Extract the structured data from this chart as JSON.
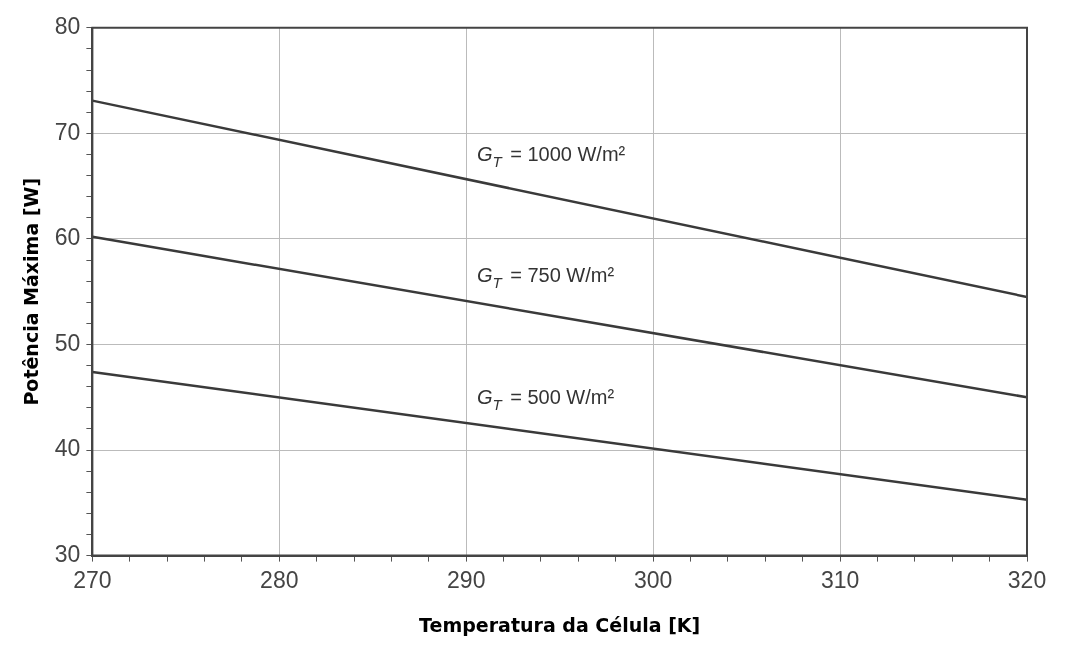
{
  "chart_data": {
    "type": "line",
    "xlabel": "Temperatura da Célula [K]",
    "ylabel": "Potência Máxima [W]",
    "x": [
      270,
      320
    ],
    "series": [
      {
        "name": "G$_{T}$ = 1000 W/m²",
        "color": "#3a3a3a",
        "values": [
          73.1,
          54.5
        ]
      },
      {
        "name": "G$_{T}$ = 750 W/m²",
        "color": "#3a3a3a",
        "values": [
          60.2,
          45
        ]
      },
      {
        "name": "G$_{T}$ = 500 W/m²",
        "color": "#3a3a3a",
        "values": [
          47.4,
          35.3
        ]
      }
    ],
    "xlim": [
      270,
      320
    ],
    "ylim": [
      30,
      80
    ],
    "xticks": [
      270,
      {
        "value": 272,
        "label": null
      },
      {
        "value": 274,
        "label": null
      },
      {
        "value": 276,
        "label": null
      },
      {
        "value": 278,
        "label": null
      },
      280,
      {
        "value": 282,
        "label": null
      },
      {
        "value": 284,
        "label": null
      },
      {
        "value": 286,
        "label": null
      },
      {
        "value": 288,
        "label": null
      },
      290,
      {
        "value": 292,
        "label": null
      },
      {
        "value": 294,
        "label": null
      },
      {
        "value": 296,
        "label": null
      },
      {
        "value": 298,
        "label": null
      },
      300,
      {
        "value": 302,
        "label": null
      },
      {
        "value": 304,
        "label": null
      },
      {
        "value": 306,
        "label": null
      },
      {
        "value": 308,
        "label": null
      },
      310,
      {
        "value": 312,
        "label": null
      },
      {
        "value": 314,
        "label": null
      },
      {
        "value": 316,
        "label": null
      },
      {
        "value": 318,
        "label": null
      },
      320
    ],
    "yticks": [
      30,
      {
        "value": 32,
        "label": null
      },
      {
        "value": 34,
        "label": null
      },
      {
        "value": 36,
        "label": null
      },
      {
        "value": 38,
        "label": null
      },
      40,
      {
        "value": 42,
        "label": null
      },
      {
        "value": 44,
        "label": null
      },
      {
        "value": 46,
        "label": null
      },
      {
        "value": 48,
        "label": null
      },
      50,
      {
        "value": 52,
        "label": null
      },
      {
        "value": 54,
        "label": null
      },
      {
        "value": 56,
        "label": null
      },
      {
        "value": 58,
        "label": null
      },
      60,
      {
        "value": 62,
        "label": null
      },
      {
        "value": 64,
        "label": null
      },
      {
        "value": 66,
        "label": null
      },
      {
        "value": 68,
        "label": null
      },
      70,
      {
        "value": 72,
        "label": null
      },
      {
        "value": 74,
        "label": null
      },
      {
        "value": 76,
        "label": null
      },
      {
        "value": 78,
        "label": null
      },
      80
    ],
    "grid": true,
    "legend": false,
    "marker": "none",
    "line_style": "solid"
  }
}
